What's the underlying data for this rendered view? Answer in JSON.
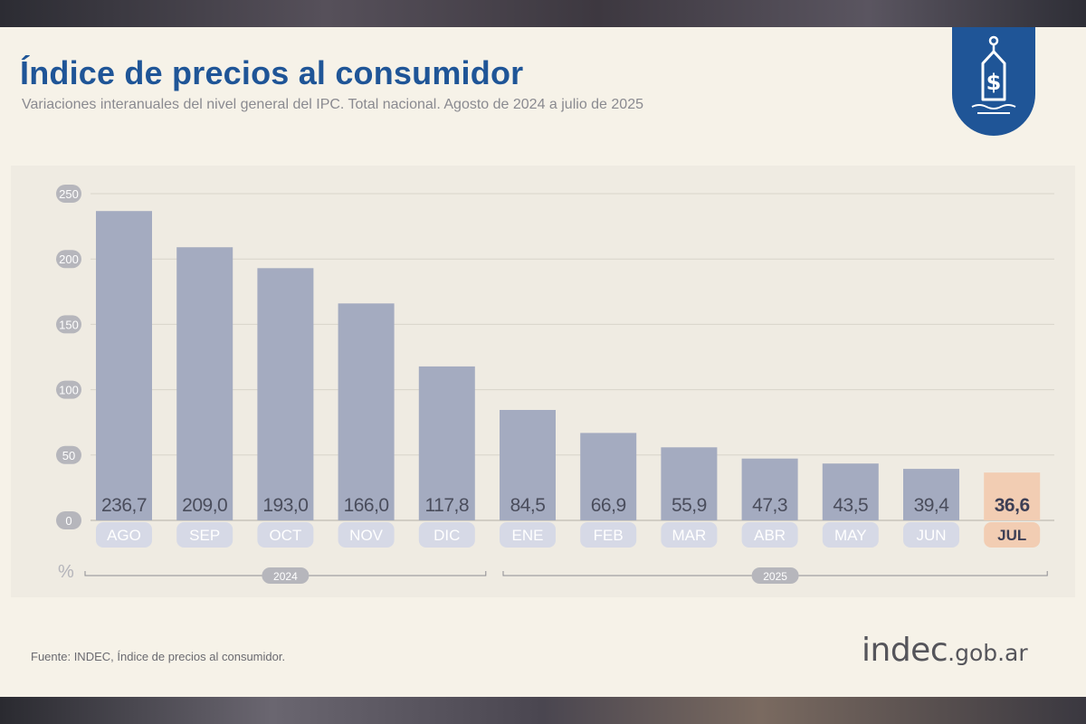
{
  "header": {
    "title": "Índice de precios al consumidor",
    "subtitle": "Variaciones interanuales del nivel general del IPC. Total nacional. Agosto de 2024 a julio de 2025"
  },
  "badge": {
    "icon": "price-tag-dollar-icon",
    "color": "#1f5597"
  },
  "footer": {
    "source": "Fuente: INDEC, Índice de precios al consumidor.",
    "logo_main": "indec",
    "logo_suffix": ".gob.ar"
  },
  "chart_data": {
    "type": "bar",
    "categories": [
      "AGO",
      "SEP",
      "OCT",
      "NOV",
      "DIC",
      "ENE",
      "FEB",
      "MAR",
      "ABR",
      "MAY",
      "JUN",
      "JUL"
    ],
    "values": [
      236.7,
      209.0,
      193.0,
      166.0,
      117.8,
      84.5,
      66.9,
      55.9,
      47.3,
      43.5,
      39.4,
      36.6
    ],
    "value_labels": [
      "236,7",
      "209,0",
      "193,0",
      "166,0",
      "117,8",
      "84,5",
      "66,9",
      "55,9",
      "47,3",
      "43,5",
      "39,4",
      "36,6"
    ],
    "yticks": [
      0,
      50,
      100,
      150,
      200,
      250
    ],
    "ylim": [
      0,
      250
    ],
    "ylabel": "%",
    "year_groups": [
      {
        "label": "2024",
        "categories": [
          "AGO",
          "SEP",
          "OCT",
          "NOV",
          "DIC"
        ]
      },
      {
        "label": "2025",
        "categories": [
          "ENE",
          "FEB",
          "MAR",
          "ABR",
          "MAY",
          "JUN",
          "JUL"
        ]
      }
    ],
    "highlight_category": "JUL",
    "grid": true,
    "colors": {
      "bar": "#a4abc0",
      "bar_highlight": "#f2cdb3",
      "value_text": "#4a4d5c",
      "highlight_text": "#3d3f55",
      "tick_pill": "#b6b6bc",
      "category_pill": "#d6d9e6",
      "category_text": "#ffffff",
      "grid": "#d8d4ca"
    }
  }
}
